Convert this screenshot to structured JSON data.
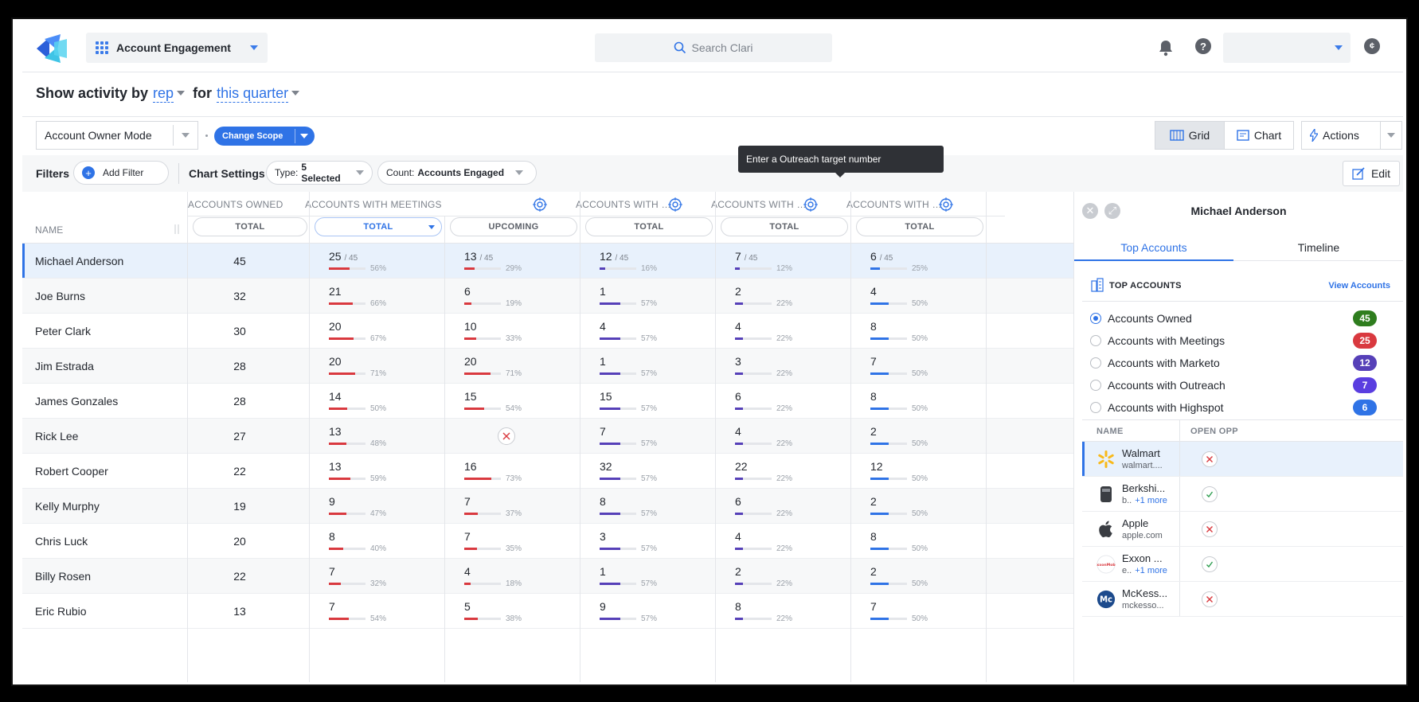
{
  "colors": {
    "meetings": "#d9393f",
    "marketo": "#5640b8",
    "outreach": "#5640b8",
    "highspot": "#2f73e6",
    "accent": "#2f73e6"
  },
  "header": {
    "app_name": "Account Engagement",
    "search_placeholder": "Search Clari"
  },
  "activity": {
    "prefix": "Show activity by",
    "group_by": "rep",
    "connector": "for",
    "period": "this quarter"
  },
  "toolbar": {
    "mode": "Account Owner Mode",
    "change_scope": "Change Scope",
    "grid_label": "Grid",
    "chart_label": "Chart",
    "actions_label": "Actions"
  },
  "filters": {
    "label": "Filters",
    "add_filter": "Add Filter",
    "chart_settings": "Chart Settings",
    "type_label": "Type:",
    "type_value": "5 Selected",
    "count_label": "Count:",
    "count_value": "Accounts Engaged",
    "edit": "Edit",
    "tooltip": "Enter a Outreach target number"
  },
  "grid": {
    "groups": [
      "ACCOUNTS OWNED",
      "ACCOUNTS WITH MEETINGS",
      "ACCOUNTS WITH M...",
      "ACCOUNTS WITH O...",
      "ACCOUNTS WITH HI..."
    ],
    "name_header": "NAME",
    "sub_headers": [
      "TOTAL",
      "TOTAL",
      "UPCOMING",
      "TOTAL",
      "TOTAL",
      "TOTAL"
    ],
    "rows": [
      {
        "name": "Michael Anderson",
        "owned": "45",
        "cells": [
          {
            "v": "25",
            "d": "/ 45",
            "p": 56
          },
          {
            "v": "13",
            "d": "/ 45",
            "p": 29
          },
          {
            "v": "12",
            "d": "/ 45",
            "p": 16
          },
          {
            "v": "7",
            "d": "/ 45",
            "p": 12
          },
          {
            "v": "6",
            "d": "/ 45",
            "p": 25
          }
        ]
      },
      {
        "name": "Joe Burns",
        "owned": "32",
        "cells": [
          {
            "v": "21",
            "p": 66
          },
          {
            "v": "6",
            "p": 19
          },
          {
            "v": "1",
            "p": 57
          },
          {
            "v": "2",
            "p": 22
          },
          {
            "v": "4",
            "p": 50
          }
        ]
      },
      {
        "name": "Peter Clark",
        "owned": "30",
        "cells": [
          {
            "v": "20",
            "p": 67
          },
          {
            "v": "10",
            "p": 33
          },
          {
            "v": "4",
            "p": 57
          },
          {
            "v": "4",
            "p": 22
          },
          {
            "v": "8",
            "p": 50
          }
        ]
      },
      {
        "name": "Jim Estrada",
        "owned": "28",
        "cells": [
          {
            "v": "20",
            "p": 71
          },
          {
            "v": "20",
            "p": 71
          },
          {
            "v": "1",
            "p": 57
          },
          {
            "v": "3",
            "p": 22
          },
          {
            "v": "7",
            "p": 50
          }
        ]
      },
      {
        "name": "James Gonzales",
        "owned": "28",
        "cells": [
          {
            "v": "14",
            "p": 50
          },
          {
            "v": "15",
            "p": 54
          },
          {
            "v": "15",
            "p": 57
          },
          {
            "v": "6",
            "p": 22
          },
          {
            "v": "8",
            "p": 50
          }
        ]
      },
      {
        "name": "Rick Lee",
        "owned": "27",
        "cells": [
          {
            "v": "13",
            "p": 48
          },
          null,
          {
            "v": "7",
            "p": 57
          },
          {
            "v": "4",
            "p": 22
          },
          {
            "v": "2",
            "p": 50
          }
        ]
      },
      {
        "name": "Robert Cooper",
        "owned": "22",
        "cells": [
          {
            "v": "13",
            "p": 59
          },
          {
            "v": "16",
            "p": 73
          },
          {
            "v": "32",
            "p": 57
          },
          {
            "v": "22",
            "p": 22
          },
          {
            "v": "12",
            "p": 50
          }
        ]
      },
      {
        "name": "Kelly Murphy",
        "owned": "19",
        "cells": [
          {
            "v": "9",
            "p": 47
          },
          {
            "v": "7",
            "p": 37
          },
          {
            "v": "8",
            "p": 57
          },
          {
            "v": "6",
            "p": 22
          },
          {
            "v": "2",
            "p": 50
          }
        ]
      },
      {
        "name": "Chris Luck",
        "owned": "20",
        "cells": [
          {
            "v": "8",
            "p": 40
          },
          {
            "v": "7",
            "p": 35
          },
          {
            "v": "3",
            "p": 57
          },
          {
            "v": "4",
            "p": 22
          },
          {
            "v": "8",
            "p": 50
          }
        ]
      },
      {
        "name": "Billy Rosen",
        "owned": "22",
        "cells": [
          {
            "v": "7",
            "p": 32
          },
          {
            "v": "4",
            "p": 18
          },
          {
            "v": "1",
            "p": 57
          },
          {
            "v": "2",
            "p": 22
          },
          {
            "v": "2",
            "p": 50
          }
        ]
      },
      {
        "name": "Eric Rubio",
        "owned": "13",
        "cells": [
          {
            "v": "7",
            "p": 54
          },
          {
            "v": "5",
            "p": 38
          },
          {
            "v": "9",
            "p": 57
          },
          {
            "v": "8",
            "p": 22
          },
          {
            "v": "7",
            "p": 50
          }
        ]
      }
    ]
  },
  "panel": {
    "name": "Michael Anderson",
    "tabs": [
      "Top Accounts",
      "Timeline"
    ],
    "top_accounts": "TOP ACCOUNTS",
    "view_accounts": "View Accounts",
    "options": [
      {
        "label": "Accounts Owned",
        "count": "45",
        "color": "#2e7d1e",
        "selected": true
      },
      {
        "label": "Accounts with Meetings",
        "count": "25",
        "color": "#d9393f",
        "selected": false
      },
      {
        "label": "Accounts with Marketo",
        "count": "12",
        "color": "#5640b8",
        "selected": false
      },
      {
        "label": "Accounts with Outreach",
        "count": "7",
        "color": "#5a3ee0",
        "selected": false
      },
      {
        "label": "Accounts with Highspot",
        "count": "6",
        "color": "#2f73e6",
        "selected": false
      }
    ],
    "col_name": "NAME",
    "col_opp": "OPEN OPP",
    "accounts": [
      {
        "name": "Walmart",
        "domain": "walmart....",
        "more": "",
        "icon": "walmart-logo-icon",
        "opp": "no"
      },
      {
        "name": "Berkshi...",
        "domain": "b..",
        "more": "+1 more",
        "icon": "berkshire-logo-icon",
        "opp": "yes"
      },
      {
        "name": "Apple",
        "domain": "apple.com",
        "more": "",
        "icon": "apple-logo-icon",
        "opp": "no"
      },
      {
        "name": "Exxon ...",
        "domain": "e..",
        "more": "+1 more",
        "icon": "exxon-logo-icon",
        "opp": "yes"
      },
      {
        "name": "McKess...",
        "domain": "mckesso...",
        "more": "",
        "icon": "mckesson-logo-icon",
        "opp": "no"
      }
    ]
  }
}
